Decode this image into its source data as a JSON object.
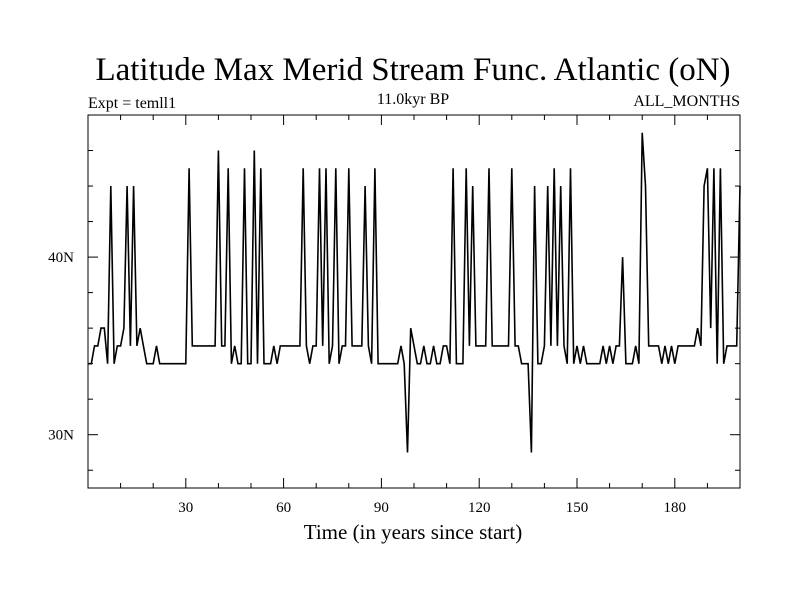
{
  "chart_data": {
    "type": "line",
    "title": "Latitude Max Merid Stream Func. Atlantic (oN)",
    "subtitle_left": "Expt = temll1",
    "subtitle_center": "11.0kyr BP",
    "subtitle_right": "ALL_MONTHS",
    "xlabel": "Time (in years since start)",
    "ylabel": "",
    "xlim": [
      0,
      200
    ],
    "ylim": [
      27,
      48
    ],
    "xticks": [
      30,
      60,
      90,
      120,
      150,
      180
    ],
    "xtick_labels": [
      "30",
      "60",
      "90",
      "120",
      "150",
      "180"
    ],
    "yticks": [
      30,
      40
    ],
    "ytick_labels": [
      "30N",
      "40N"
    ],
    "grid": false,
    "series": [
      {
        "color": "#000000",
        "x": [
          0,
          1,
          2,
          3,
          4,
          5,
          6,
          7,
          8,
          9,
          10,
          11,
          12,
          13,
          14,
          15,
          16,
          17,
          18,
          19,
          20,
          21,
          22,
          23,
          24,
          25,
          26,
          27,
          28,
          29,
          30,
          31,
          32,
          33,
          34,
          35,
          36,
          37,
          38,
          39,
          40,
          41,
          42,
          43,
          44,
          45,
          46,
          47,
          48,
          49,
          50,
          51,
          52,
          53,
          54,
          55,
          56,
          57,
          58,
          59,
          60,
          61,
          62,
          63,
          64,
          65,
          66,
          67,
          68,
          69,
          70,
          71,
          72,
          73,
          74,
          75,
          76,
          77,
          78,
          79,
          80,
          81,
          82,
          83,
          84,
          85,
          86,
          87,
          88,
          89,
          90,
          91,
          92,
          93,
          94,
          95,
          96,
          97,
          98,
          99,
          100,
          101,
          102,
          103,
          104,
          105,
          106,
          107,
          108,
          109,
          110,
          111,
          112,
          113,
          114,
          115,
          116,
          117,
          118,
          119,
          120,
          121,
          122,
          123,
          124,
          125,
          126,
          127,
          128,
          129,
          130,
          131,
          132,
          133,
          134,
          135,
          136,
          137,
          138,
          139,
          140,
          141,
          142,
          143,
          144,
          145,
          146,
          147,
          148,
          149,
          150,
          151,
          152,
          153,
          154,
          155,
          156,
          157,
          158,
          159,
          160,
          161,
          162,
          163,
          164,
          165,
          166,
          167,
          168,
          169,
          170,
          171,
          172,
          173,
          174,
          175,
          176,
          177,
          178,
          179,
          180,
          181,
          182,
          183,
          184,
          185,
          186,
          187,
          188,
          189,
          190,
          191,
          192,
          193,
          194,
          195,
          196,
          197,
          198,
          199,
          200
        ],
        "values": [
          34,
          34,
          35,
          35,
          36,
          36,
          34,
          44,
          34,
          35,
          35,
          36,
          44,
          35,
          44,
          35,
          36,
          35,
          34,
          34,
          34,
          35,
          34,
          34,
          34,
          34,
          34,
          34,
          34,
          34,
          34,
          45,
          35,
          35,
          35,
          35,
          35,
          35,
          35,
          35,
          46,
          35,
          35,
          45,
          34,
          35,
          34,
          34,
          45,
          34,
          34,
          46,
          34,
          45,
          34,
          34,
          34,
          35,
          34,
          35,
          35,
          35,
          35,
          35,
          35,
          35,
          45,
          35,
          34,
          35,
          35,
          45,
          35,
          45,
          34,
          35,
          45,
          34,
          35,
          35,
          45,
          35,
          35,
          35,
          35,
          44,
          35,
          34,
          45,
          34,
          34,
          34,
          34,
          34,
          34,
          34,
          35,
          34,
          29,
          36,
          35,
          34,
          34,
          35,
          34,
          34,
          35,
          34,
          34,
          35,
          35,
          34,
          45,
          34,
          34,
          34,
          45,
          35,
          44,
          35,
          35,
          35,
          35,
          45,
          35,
          35,
          35,
          35,
          35,
          35,
          45,
          35,
          35,
          34,
          34,
          34,
          29,
          44,
          34,
          34,
          35,
          44,
          35,
          45,
          35,
          44,
          35,
          34,
          45,
          34,
          35,
          34,
          35,
          34,
          34,
          34,
          34,
          34,
          35,
          34,
          35,
          34,
          35,
          35,
          40,
          34,
          34,
          34,
          35,
          34,
          47,
          44,
          35,
          35,
          35,
          35,
          34,
          35,
          34,
          35,
          34,
          35,
          35,
          35,
          35,
          35,
          35,
          36,
          35,
          44,
          45,
          36,
          45,
          34,
          45,
          34,
          35,
          35,
          35,
          35,
          44
        ]
      }
    ]
  }
}
